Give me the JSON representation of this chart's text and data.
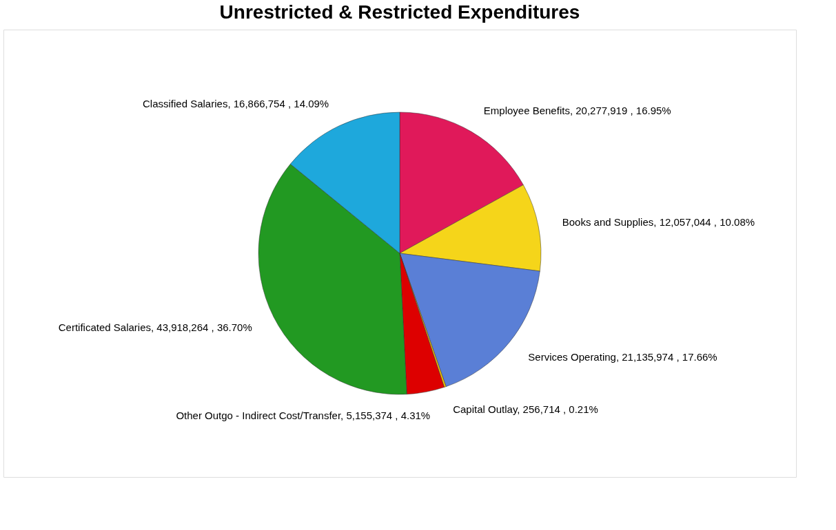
{
  "chart_data": {
    "type": "pie",
    "title": "Unrestricted & Restricted Expenditures",
    "categories": [
      "Employee Benefits",
      "Books and Supplies",
      "Services Operating",
      "Capital Outlay",
      "Other Outgo - Indirect Cost/Transfer",
      "Certificated Salaries",
      "Classified Salaries"
    ],
    "values": [
      20277919,
      12057044,
      21135974,
      256714,
      5155374,
      43918264,
      16866754
    ],
    "value_labels": [
      "20,277,919 , 16.95%",
      "12,057,044 , 10.08%",
      "21,135,974 , 17.66%",
      "256,714 , 0.21%",
      "5,155,374 , 4.31%",
      "43,918,264 , 36.70%",
      "16,866,754 , 14.09%"
    ],
    "colors": [
      "#e0195a",
      "#f5d51a",
      "#5a7fd6",
      "#f0c000",
      "#dd0000",
      "#229922",
      "#1ea8dc"
    ],
    "legend": false
  }
}
